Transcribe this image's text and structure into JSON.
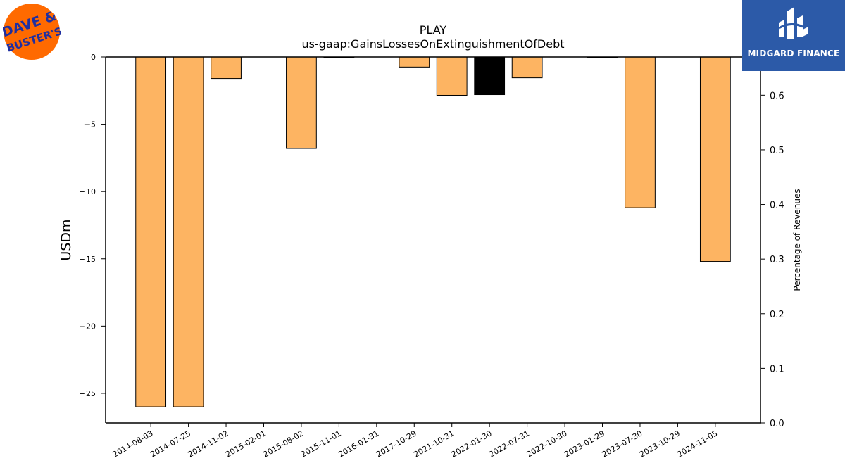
{
  "company_logo": {
    "text": "DAVE & BUSTER'S",
    "bg_color": "#ff6a00",
    "text_color": "#1f2fa0"
  },
  "brand": {
    "name": "MIDGARD FINANCE",
    "bg_color": "#2c5aa8",
    "icon": "midgard-mark-icon"
  },
  "chart_data": {
    "type": "bar",
    "title": "PLAY",
    "subtitle": "us-gaap:GainsLossesOnExtinguishmentOfDebt",
    "ylabel": "USDm",
    "y2label": "Percentage of Revenues",
    "categories": [
      "2014-08-03",
      "2014-07-25",
      "2014-11-02",
      "2015-02-01",
      "2015-08-02",
      "2015-11-01",
      "2016-01-31",
      "2017-10-29",
      "2021-10-31",
      "2022-01-30",
      "2022-07-31",
      "2022-10-30",
      "2023-01-29",
      "2023-07-30",
      "2023-10-29",
      "2024-11-05"
    ],
    "values": [
      -26.0,
      -26.0,
      -1.6,
      0,
      -6.8,
      -0.05,
      0,
      -0.75,
      -2.85,
      -2.8,
      -1.55,
      0,
      -0.05,
      -11.2,
      0,
      -15.2
    ],
    "bar_colors": [
      "#fdb462",
      "#fdb462",
      "#fdb462",
      "#fdb462",
      "#fdb462",
      "#fdb462",
      "#fdb462",
      "#fdb462",
      "#fdb462",
      "#000000",
      "#fdb462",
      "#fdb462",
      "#fdb462",
      "#fdb462",
      "#fdb462",
      "#fdb462"
    ],
    "ylim": [
      -27.2,
      0
    ],
    "yticks": [
      0,
      -5,
      -10,
      -15,
      -20,
      -25
    ],
    "ytick_labels": [
      "0",
      "−5",
      "−10",
      "−15",
      "−20",
      "−25"
    ],
    "y2lim": [
      0,
      0.67
    ],
    "y2ticks": [
      0.0,
      0.1,
      0.2,
      0.3,
      0.4,
      0.5,
      0.6
    ],
    "y2tick_labels": [
      "0.0",
      "0.1",
      "0.2",
      "0.3",
      "0.4",
      "0.5",
      "0.6"
    ]
  }
}
